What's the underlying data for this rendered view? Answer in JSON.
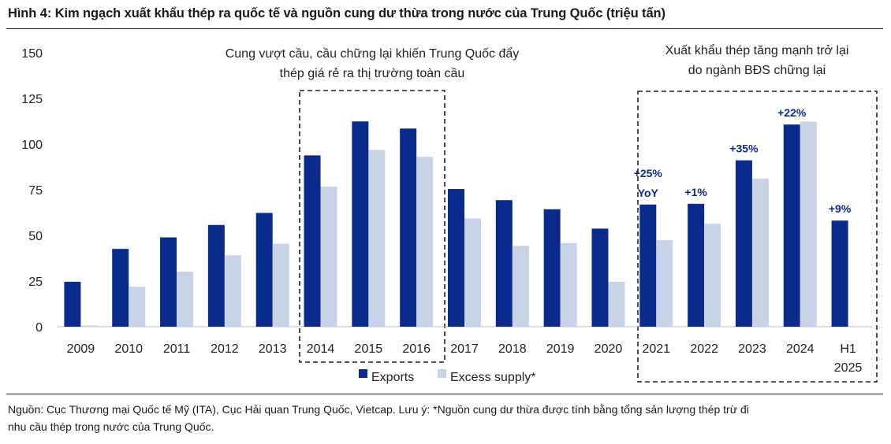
{
  "figure": {
    "title": "Hình 4: Kim ngạch xuất khẩu thép ra quốc tế và nguồn cung dư thừa trong nước của Trung Quốc (triệu tấn)",
    "source_line1": "Nguồn: Cục Thương mại Quốc tế Mỹ (ITA), Cục Hải quan Trung Quốc, Vietcap. Lưu ý: *Nguồn cung dư thừa được tính bằng tổng sản lượng thép trừ đi",
    "source_line2": "nhu cầu thép trong nước của Trung Quốc."
  },
  "chart_data": {
    "type": "bar",
    "title": "Kim ngạch xuất khẩu thép ra quốc tế và nguồn cung dư thừa trong nước của Trung Quốc (triệu tấn)",
    "categories": [
      "2009",
      "2010",
      "2011",
      "2012",
      "2013",
      "2014",
      "2015",
      "2016",
      "2017",
      "2018",
      "2019",
      "2020",
      "2021",
      "2022",
      "2023",
      "2024",
      "H1 2025"
    ],
    "category_lines": [
      [
        "2009"
      ],
      [
        "2010"
      ],
      [
        "2011"
      ],
      [
        "2012"
      ],
      [
        "2013"
      ],
      [
        "2014"
      ],
      [
        "2015"
      ],
      [
        "2016"
      ],
      [
        "2017"
      ],
      [
        "2018"
      ],
      [
        "2019"
      ],
      [
        "2020"
      ],
      [
        "2021"
      ],
      [
        "2022"
      ],
      [
        "2023"
      ],
      [
        "2024"
      ],
      [
        "H1",
        "2025"
      ]
    ],
    "series": [
      {
        "name": "Exports",
        "color": "#0a2a8c",
        "values": [
          24.6,
          42.6,
          48.9,
          55.7,
          62.3,
          93.8,
          112.4,
          108.5,
          75.4,
          69.3,
          64.3,
          53.7,
          66.9,
          67.3,
          91.1,
          110.7,
          58.1
        ]
      },
      {
        "name": "Excess supply*",
        "color": "#c8d3e8",
        "values": [
          0.7,
          21.9,
          30.2,
          39.1,
          45.4,
          76.7,
          96.8,
          93.0,
          59.3,
          44.3,
          45.8,
          24.6,
          47.4,
          56.4,
          81.1,
          112.3,
          null
        ]
      }
    ],
    "ylim": [
      0,
      150
    ],
    "yticks": [
      0,
      25,
      50,
      75,
      100,
      125,
      150
    ],
    "xlabel": "",
    "ylabel": "",
    "grid": false,
    "legend_position": "bottom-center",
    "bar_labels": [
      {
        "category_index": 12,
        "lines": [
          "+25%",
          "YoY"
        ]
      },
      {
        "category_index": 13,
        "lines": [
          "+1%"
        ]
      },
      {
        "category_index": 14,
        "lines": [
          "+35%"
        ]
      },
      {
        "category_index": 15,
        "lines": [
          "+22%"
        ]
      },
      {
        "category_index": 16,
        "lines": [
          "+9%"
        ]
      }
    ],
    "annotations": [
      {
        "box_category_range": [
          5,
          7
        ],
        "lines": [
          "Cung vượt cầu, cầu chững lại khiến Trung Quốc đẩy",
          "thép giá rẻ ra thị trường toàn cầu"
        ]
      },
      {
        "box_category_range": [
          12,
          16
        ],
        "lines": [
          "Xuất khẩu thép tăng mạnh trở lại",
          "do ngành BĐS chững lại"
        ]
      }
    ]
  }
}
